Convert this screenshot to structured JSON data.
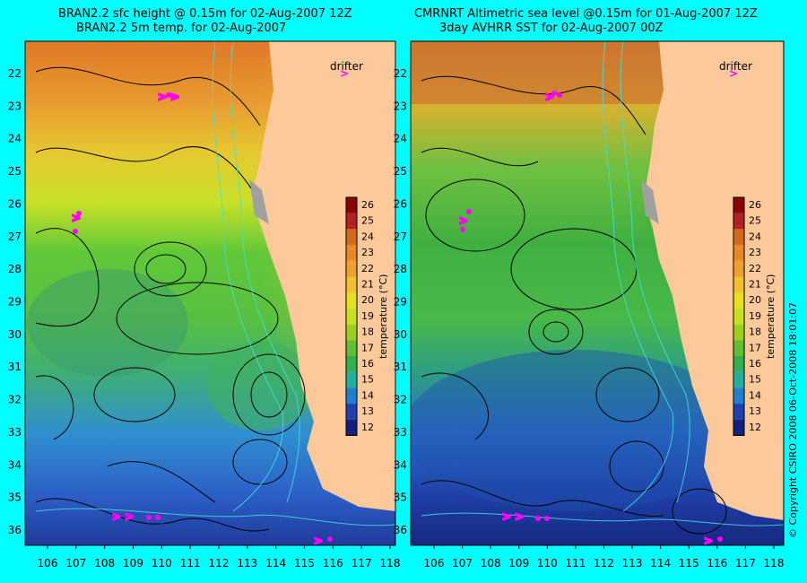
{
  "left_panel": {
    "title_line1": "BRAN2.2 sfc height @ 0.15m for 02-Aug-2007 12Z",
    "title_line2": "BRAN2.2 5m temp. for 02-Aug-2007",
    "drifter_label": "drifter"
  },
  "right_panel": {
    "title_line1": "CMRNRT Altimetric sea level  @0.15m  for 01-Aug-2007 12Z",
    "title_line2": "3day AVHRR SST for 02-Aug-2007 00Z",
    "drifter_label": "drifter"
  },
  "axes": {
    "longitudes": [
      "106",
      "107",
      "108",
      "109",
      "110",
      "111",
      "112",
      "113",
      "114",
      "115",
      "116",
      "117",
      "118"
    ],
    "latitudes": [
      "22",
      "23",
      "24",
      "25",
      "26",
      "27",
      "28",
      "29",
      "30",
      "31",
      "32",
      "33",
      "34",
      "35",
      "36"
    ]
  },
  "colorbar": {
    "label": "temperature (°C)",
    "ticks": [
      "26",
      "25",
      "24",
      "23",
      "22",
      "21",
      "20",
      "19",
      "18",
      "17",
      "16",
      "15",
      "14",
      "13",
      "12"
    ],
    "colors": [
      "#8b0000",
      "#b22222",
      "#d2691e",
      "#e8862a",
      "#f0a030",
      "#f5c030",
      "#e6e020",
      "#c8e020",
      "#9ad020",
      "#60c030",
      "#30b050",
      "#20b0a0",
      "#2080d0",
      "#2040b0",
      "#102080"
    ]
  },
  "copyright": "© Copyright CSIRO 2008    06-Oct-2008 18:01:07",
  "colors": {
    "frame": "#00ffff",
    "land": "#fcc99b",
    "drifter": "#ff00ff",
    "contour": "#000000",
    "bathymetry": "#40e0e0"
  }
}
